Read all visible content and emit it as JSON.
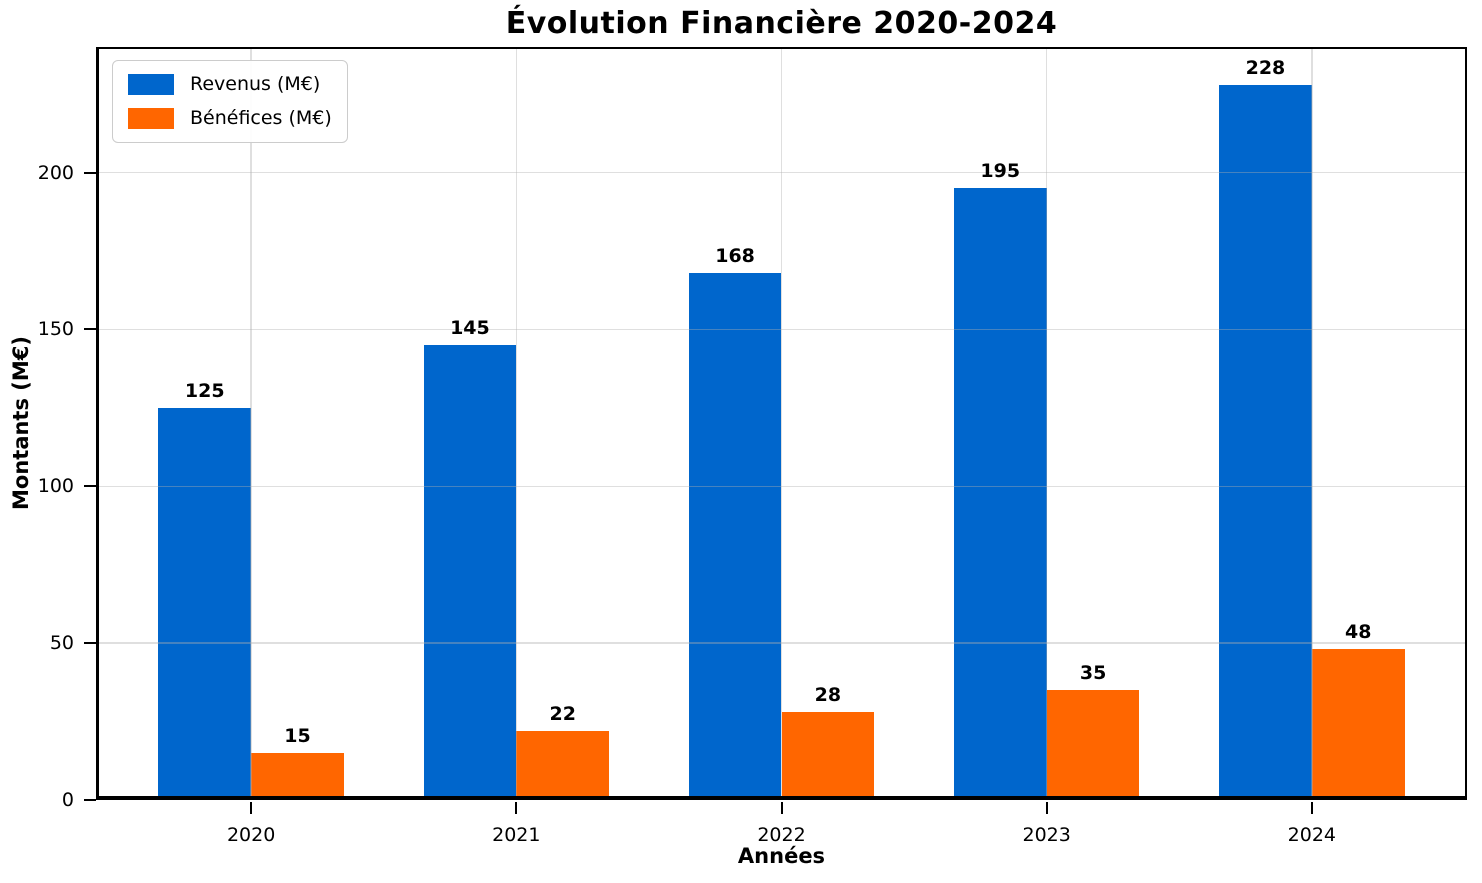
{
  "chart_data": {
    "type": "bar",
    "title": "Évolution Financière 2020-2024",
    "xlabel": "Années",
    "ylabel": "Montants (M€)",
    "categories": [
      "2020",
      "2021",
      "2022",
      "2023",
      "2024"
    ],
    "series": [
      {
        "name": "Revenus (M€)",
        "color": "#0066CC",
        "values": [
          125,
          145,
          168,
          195,
          228
        ]
      },
      {
        "name": "Bénéfices (M€)",
        "color": "#FF6600",
        "values": [
          15,
          22,
          28,
          35,
          48
        ]
      }
    ],
    "ylim": [
      0,
      240
    ],
    "yticks": [
      0,
      50,
      100,
      150,
      200
    ],
    "grid": true,
    "grid_over_bars": true,
    "legend_position": "upper left",
    "bar_width_units": 0.35,
    "bar_value_labels": true,
    "background_color": "#ffffff",
    "spine_color": "#000000"
  }
}
